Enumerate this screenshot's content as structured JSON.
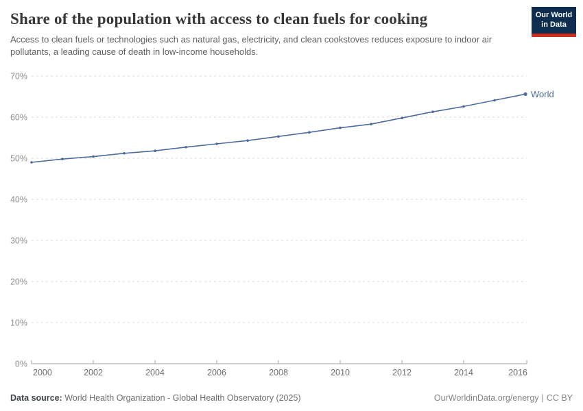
{
  "header": {
    "title": "Share of the population with access to clean fuels for cooking",
    "subtitle": "Access to clean fuels or technologies such as natural gas, electricity, and clean cookstoves reduces exposure to indoor air pollutants, a leading cause of death in low-income households."
  },
  "logo": {
    "line1": "Our World",
    "line2": "in Data"
  },
  "chart_data": {
    "type": "line",
    "title": "Share of the population with access to clean fuels for cooking",
    "x": [
      2000,
      2001,
      2002,
      2003,
      2004,
      2005,
      2006,
      2007,
      2008,
      2009,
      2010,
      2011,
      2012,
      2013,
      2014,
      2015,
      2016
    ],
    "series": [
      {
        "name": "World",
        "values": [
          49.0,
          49.8,
          50.4,
          51.2,
          51.8,
          52.7,
          53.5,
          54.3,
          55.3,
          56.3,
          57.4,
          58.3,
          59.8,
          61.3,
          62.6,
          64.1,
          65.6
        ]
      }
    ],
    "xlim": [
      2000,
      2016
    ],
    "ylim": [
      0,
      70
    ],
    "y_ticks": [
      0,
      10,
      20,
      30,
      40,
      50,
      60,
      70
    ],
    "y_tick_suffix": "%",
    "x_ticks": [
      2000,
      2002,
      2004,
      2006,
      2008,
      2010,
      2012,
      2014,
      2016
    ],
    "grid": "horizontal dashed gridlines, solid baseline at 0%",
    "legend": "series label at end of line",
    "colors": {
      "line": "#4c6a9c",
      "grid": "#dadada",
      "axis": "#a1a1a1",
      "y_tick_label": "#8f8f8f",
      "x_tick_label": "#6e6e6e"
    }
  },
  "footer": {
    "source_label": "Data source:",
    "source_value": " World Health Organization - Global Health Observatory (2025)",
    "site": "OurWorldinData.org/energy",
    "separator": "|",
    "license": "CC BY"
  }
}
